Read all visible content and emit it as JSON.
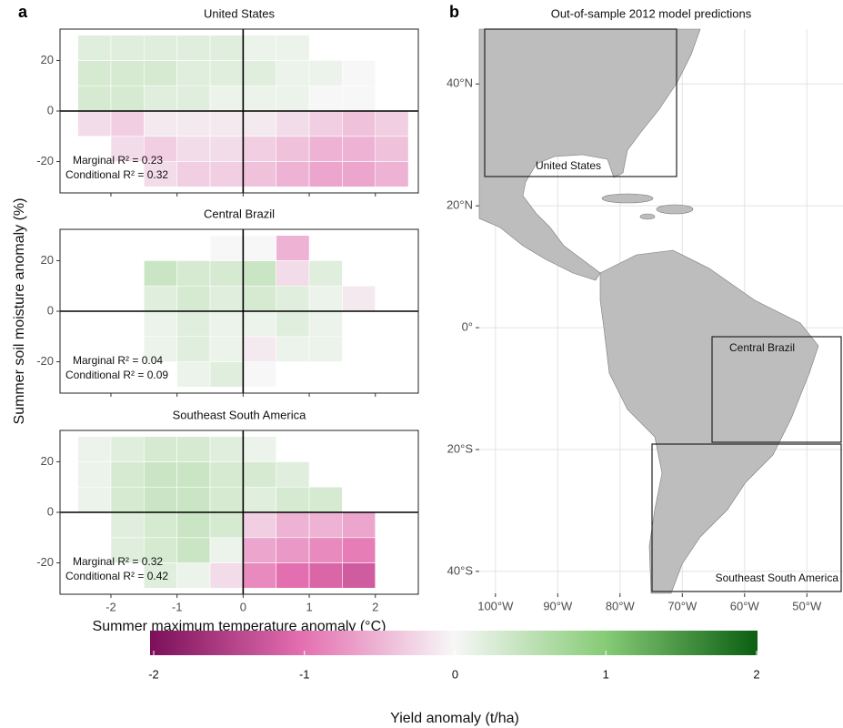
{
  "figure": {
    "panel_labels": [
      "a",
      "b"
    ],
    "x_label": "Summer maximum temperature anomaly (°C)",
    "y_label": "Summer soil moisture anomaly (%)"
  },
  "chart_data": [
    {
      "type": "heatmap",
      "title": "United States",
      "annotations": [
        "Marginal R² = 0.23",
        "Conditional R² = 0.32"
      ],
      "xlim": [
        -2.77,
        2.65
      ],
      "ylim": [
        -32.4,
        32.4
      ],
      "xticks": [
        -2,
        -1,
        0,
        1,
        2
      ],
      "yticks": [
        -20,
        0,
        20
      ],
      "vlines": [
        0
      ],
      "hlines": [
        0
      ],
      "xbins": [
        -2.5,
        -2,
        -1.5,
        -1,
        -0.5,
        0,
        0.5,
        1,
        1.5,
        2,
        2.5
      ],
      "ybins": [
        -30,
        -20,
        -10,
        0,
        10,
        20,
        30
      ],
      "values": [
        [
          null,
          null,
          -0.2,
          -0.3,
          -0.3,
          -0.4,
          -0.5,
          -0.6,
          -0.6,
          -0.5
        ],
        [
          null,
          -0.2,
          -0.3,
          -0.2,
          -0.2,
          -0.3,
          -0.4,
          -0.5,
          -0.5,
          -0.4
        ],
        [
          -0.2,
          -0.3,
          -0.1,
          -0.1,
          -0.1,
          -0.1,
          -0.2,
          -0.3,
          -0.4,
          -0.3
        ],
        [
          0.3,
          0.3,
          0.2,
          0.2,
          0.1,
          0.1,
          0.1,
          0.0,
          0.0,
          null
        ],
        [
          0.3,
          0.3,
          0.3,
          0.2,
          0.2,
          0.2,
          0.1,
          0.1,
          0.0,
          null
        ],
        [
          0.2,
          0.2,
          0.2,
          0.2,
          0.2,
          0.1,
          0.1,
          null,
          null,
          null
        ]
      ]
    },
    {
      "type": "heatmap",
      "title": "Central Brazil",
      "annotations": [
        "Marginal R² = 0.04",
        "Conditional R² = 0.09"
      ],
      "xlim": [
        -2.77,
        2.65
      ],
      "ylim": [
        -32.4,
        32.4
      ],
      "xticks": [
        -2,
        -1,
        0,
        1,
        2
      ],
      "yticks": [
        -20,
        0,
        20
      ],
      "vlines": [
        0
      ],
      "hlines": [
        0
      ],
      "xbins": [
        -2.5,
        -2,
        -1.5,
        -1,
        -0.5,
        0,
        0.5,
        1,
        1.5,
        2,
        2.5
      ],
      "ybins": [
        -30,
        -20,
        -10,
        0,
        10,
        20,
        30
      ],
      "values": [
        [
          null,
          null,
          null,
          0.1,
          0.2,
          0.0,
          null,
          null,
          null,
          null
        ],
        [
          null,
          null,
          0.1,
          0.2,
          0.1,
          -0.1,
          0.1,
          0.1,
          null,
          null
        ],
        [
          null,
          null,
          0.1,
          0.2,
          0.1,
          0.1,
          0.2,
          0.1,
          null,
          null
        ],
        [
          null,
          null,
          0.2,
          0.3,
          0.2,
          0.3,
          0.2,
          0.1,
          -0.1,
          null
        ],
        [
          null,
          null,
          0.4,
          0.3,
          0.3,
          0.4,
          -0.2,
          0.2,
          null,
          null
        ],
        [
          null,
          null,
          null,
          null,
          0.0,
          0.0,
          -0.5,
          null,
          null,
          null
        ]
      ]
    },
    {
      "type": "heatmap",
      "title": "Southeast South America",
      "annotations": [
        "Marginal R² = 0.32",
        "Conditional R² = 0.42"
      ],
      "xlim": [
        -2.77,
        2.65
      ],
      "ylim": [
        -32.4,
        32.4
      ],
      "xticks": [
        -2,
        -1,
        0,
        1,
        2
      ],
      "yticks": [
        -20,
        0,
        20
      ],
      "vlines": [
        0
      ],
      "hlines": [
        0
      ],
      "xbins": [
        -2.5,
        -2,
        -1.5,
        -1,
        -0.5,
        0,
        0.5,
        1,
        1.5,
        2,
        2.5
      ],
      "ybins": [
        -30,
        -20,
        -10,
        0,
        10,
        20,
        30
      ],
      "values": [
        [
          null,
          null,
          0.2,
          0.1,
          -0.2,
          -0.8,
          -1.0,
          -1.1,
          -1.2,
          null
        ],
        [
          null,
          0.2,
          0.3,
          0.4,
          0.1,
          -0.6,
          -0.7,
          -0.8,
          -0.9,
          null
        ],
        [
          null,
          0.2,
          0.3,
          0.4,
          0.3,
          -0.3,
          -0.5,
          -0.5,
          -0.6,
          null
        ],
        [
          0.1,
          0.3,
          0.4,
          0.4,
          0.3,
          0.2,
          0.3,
          0.3,
          null,
          null
        ],
        [
          0.1,
          0.3,
          0.4,
          0.4,
          0.3,
          0.3,
          0.2,
          null,
          null,
          null
        ],
        [
          0.1,
          0.2,
          0.3,
          0.3,
          0.2,
          0.1,
          null,
          null,
          null,
          null
        ]
      ]
    },
    {
      "type": "map",
      "title": "Out-of-sample 2012 model predictions",
      "xlim": [
        -102.6,
        -44.2
      ],
      "ylim": [
        -43.6,
        49
      ],
      "xticks": [
        {
          "value": -100,
          "label": "100°W"
        },
        {
          "value": -90,
          "label": "90°W"
        },
        {
          "value": -80,
          "label": "80°W"
        },
        {
          "value": -70,
          "label": "70°W"
        },
        {
          "value": -60,
          "label": "60°W"
        },
        {
          "value": -50,
          "label": "50°W"
        }
      ],
      "yticks": [
        {
          "value": 40,
          "label": "40°N"
        },
        {
          "value": 20,
          "label": "20°N"
        },
        {
          "value": 0,
          "label": "0°"
        },
        {
          "value": -20,
          "label": "20°S"
        },
        {
          "value": -40,
          "label": "40°S"
        }
      ],
      "regions": [
        "United States",
        "Central Brazil",
        "Southeast South America"
      ]
    },
    {
      "type": "colorbar",
      "title": "Yield anomaly (t/ha)",
      "lim": [
        -2,
        2
      ],
      "ticks": [
        -2,
        -1,
        0,
        1,
        2
      ],
      "colors": [
        "#7b0f5a",
        "#e46fb0",
        "#f7f7f7",
        "#86cb76",
        "#0b5e12"
      ]
    }
  ]
}
